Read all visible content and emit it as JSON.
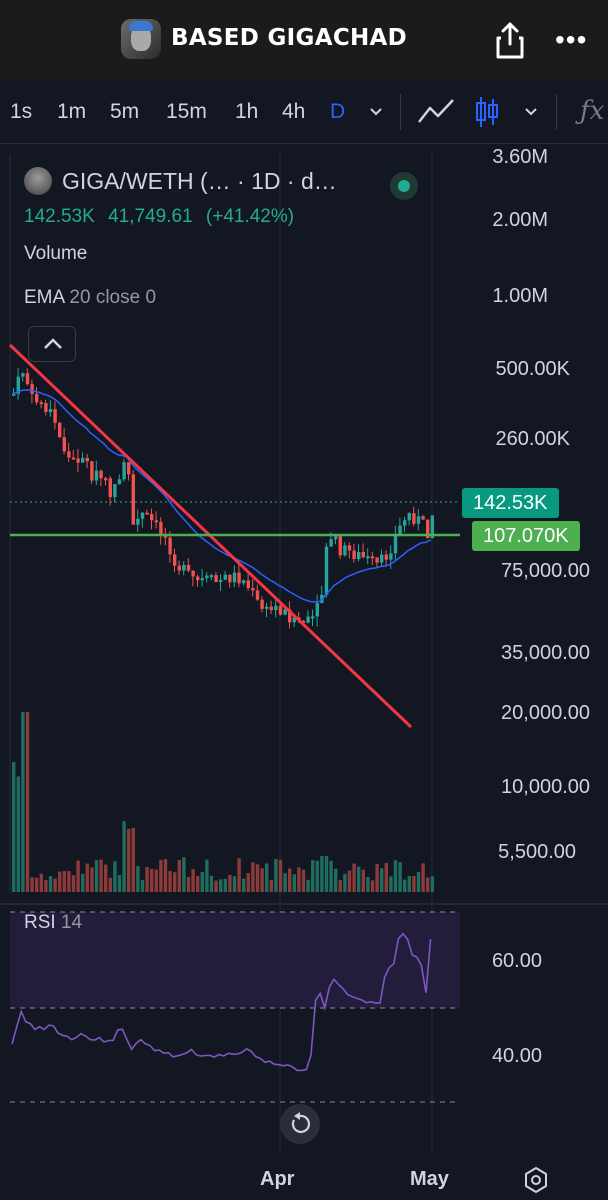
{
  "header": {
    "title": "BASED GIGACHAD",
    "share_icon": "share-icon",
    "more_icon": "more-icon"
  },
  "toolbar": {
    "timeframes": [
      "1s",
      "1m",
      "5m",
      "15m",
      "1h",
      "4h",
      "D"
    ],
    "active_timeframe": "D",
    "chart_styles": [
      "line-chart-icon",
      "candles-icon"
    ],
    "indicators_icon": "fx-icon"
  },
  "legend": {
    "symbol": "GIGA/WETH (… · 1D · d…",
    "last_price": "142.53K",
    "change": "41,749.61",
    "change_pct": "(+41.42%)",
    "volume_label": "Volume",
    "ema_label": "EMA",
    "ema_params": "20 close 0",
    "market_status": "open"
  },
  "axis": {
    "price_labels": [
      "3.60M",
      "2.00M",
      "1.00M",
      "500.00K",
      "260.00K",
      "75,000.00",
      "35,000.00",
      "20,000.00",
      "10,000.00",
      "5,500.00"
    ],
    "rsi_labels": [
      "60.00",
      "40.00"
    ],
    "time_labels": [
      "Apr",
      "May"
    ]
  },
  "tags": {
    "current_price": "142.53K",
    "hline_price": "107.070K"
  },
  "rsi": {
    "label": "RSI",
    "length": "14"
  },
  "colors": {
    "up": "#26a69a",
    "down": "#ef5350",
    "ema": "#2962ff",
    "trendline": "#f23645",
    "hline": "#4caf50",
    "rsi": "#7e57c2",
    "accent": "#2962ff"
  }
}
